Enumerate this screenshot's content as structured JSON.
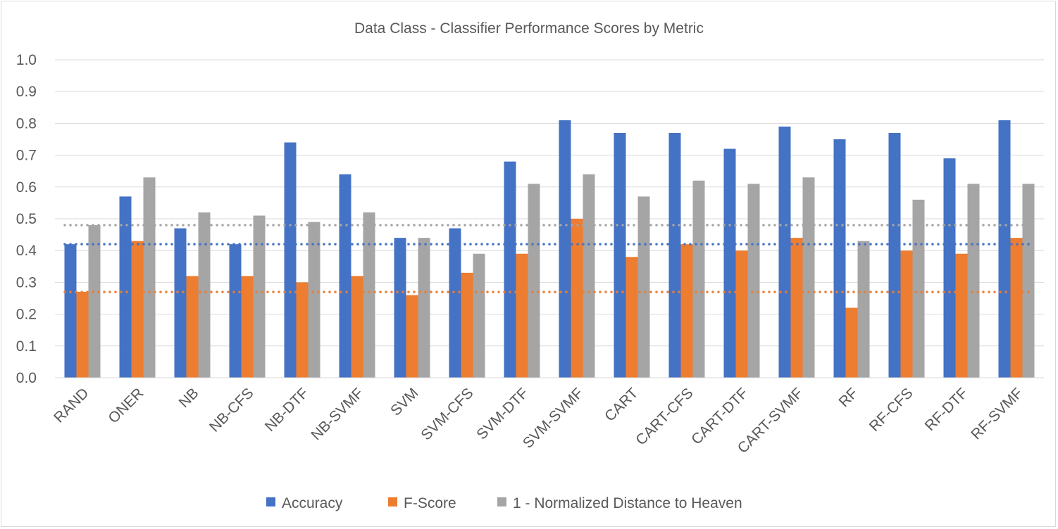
{
  "chart_data": {
    "type": "bar",
    "title": "Data Class - Classifier Performance Scores by Metric",
    "xlabel": "",
    "ylabel": "",
    "ylim": [
      0,
      1.0
    ],
    "yticks": [
      "0.0",
      "0.1",
      "0.2",
      "0.3",
      "0.4",
      "0.5",
      "0.6",
      "0.7",
      "0.8",
      "0.9",
      "1.0"
    ],
    "grid": true,
    "legend_position": "bottom",
    "categories": [
      "RAND",
      "ONER",
      "NB",
      "NB-CFS",
      "NB-DTF",
      "NB-SVMF",
      "SVM",
      "SVM-CFS",
      "SVM-DTF",
      "SVM-SVMF",
      "CART",
      "CART-CFS",
      "CART-DTF",
      "CART-SVMF",
      "RF",
      "RF-CFS",
      "RF-DTF",
      "RF-SVMF"
    ],
    "series": [
      {
        "name": "Accuracy",
        "color": "#4472c4",
        "values": [
          0.42,
          0.57,
          0.47,
          0.42,
          0.74,
          0.64,
          0.44,
          0.47,
          0.68,
          0.81,
          0.77,
          0.77,
          0.72,
          0.79,
          0.75,
          0.77,
          0.69,
          0.81
        ]
      },
      {
        "name": "F-Score",
        "color": "#ed7d31",
        "values": [
          0.27,
          0.43,
          0.32,
          0.32,
          0.3,
          0.32,
          0.26,
          0.33,
          0.39,
          0.5,
          0.38,
          0.42,
          0.4,
          0.44,
          0.22,
          0.4,
          0.39,
          0.44
        ]
      },
      {
        "name": "1 - Normalized Distance to Heaven",
        "color": "#a5a5a5",
        "values": [
          0.48,
          0.63,
          0.52,
          0.51,
          0.49,
          0.52,
          0.44,
          0.39,
          0.61,
          0.64,
          0.57,
          0.62,
          0.61,
          0.63,
          0.43,
          0.56,
          0.61,
          0.61
        ]
      }
    ],
    "reference_lines": [
      {
        "series": "Accuracy",
        "value": 0.42,
        "color": "#4472c4",
        "style": "dotted"
      },
      {
        "series": "F-Score",
        "value": 0.27,
        "color": "#ed7d31",
        "style": "dotted"
      },
      {
        "series": "1 - Normalized Distance to Heaven",
        "value": 0.48,
        "color": "#a5a5a5",
        "style": "dotted"
      }
    ]
  }
}
